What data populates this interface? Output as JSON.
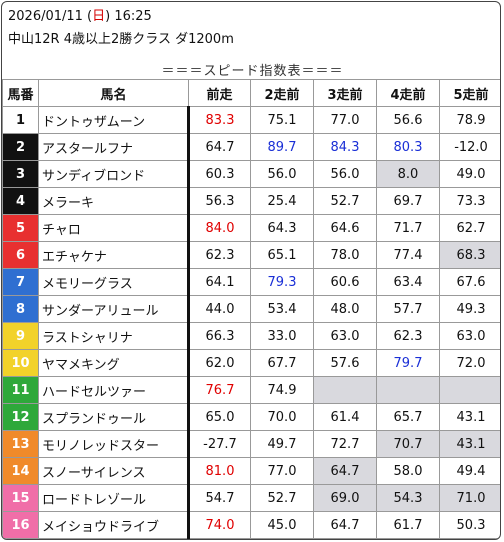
{
  "header": {
    "date_prefix": "2026/01/11 (",
    "day": "日",
    "date_suffix": ") 16:25",
    "race": "中山12R 4歳以上2勝クラス ダ1200m"
  },
  "table": {
    "title": "＝＝＝スピード指数表＝＝＝",
    "columns": [
      "馬番",
      "馬名",
      "前走",
      "2走前",
      "3走前",
      "4走前",
      "5走前"
    ],
    "rows": [
      {
        "num": "1",
        "wk": 1,
        "name": "ドントゥザムーン",
        "v": [
          {
            "t": "83.3",
            "c": "red"
          },
          {
            "t": "75.1"
          },
          {
            "t": "77.0"
          },
          {
            "t": "56.6"
          },
          {
            "t": "78.9"
          }
        ]
      },
      {
        "num": "2",
        "wk": 2,
        "name": "アスタールフナ",
        "v": [
          {
            "t": "64.7"
          },
          {
            "t": "89.7",
            "c": "blue",
            "b": true
          },
          {
            "t": "84.3",
            "c": "blue"
          },
          {
            "t": "80.3",
            "c": "blue"
          },
          {
            "t": "-12.0"
          }
        ]
      },
      {
        "num": "3",
        "wk": 2,
        "name": "サンディブロンド",
        "v": [
          {
            "t": "60.3"
          },
          {
            "t": "56.0"
          },
          {
            "t": "56.0"
          },
          {
            "t": "8.0",
            "g": true
          },
          {
            "t": "49.0"
          }
        ]
      },
      {
        "num": "4",
        "wk": 2,
        "name": "メラーキ",
        "v": [
          {
            "t": "56.3"
          },
          {
            "t": "25.4"
          },
          {
            "t": "52.7"
          },
          {
            "t": "69.7"
          },
          {
            "t": "73.3"
          }
        ]
      },
      {
        "num": "5",
        "wk": 3,
        "name": "チャロ",
        "v": [
          {
            "t": "84.0",
            "c": "red",
            "b": true
          },
          {
            "t": "64.3"
          },
          {
            "t": "64.6"
          },
          {
            "t": "71.7"
          },
          {
            "t": "62.7"
          }
        ]
      },
      {
        "num": "6",
        "wk": 3,
        "name": "エチャケナ",
        "v": [
          {
            "t": "62.3"
          },
          {
            "t": "65.1"
          },
          {
            "t": "78.0"
          },
          {
            "t": "77.4"
          },
          {
            "t": "68.3",
            "g": true
          }
        ]
      },
      {
        "num": "7",
        "wk": 4,
        "name": "メモリーグラス",
        "v": [
          {
            "t": "64.1"
          },
          {
            "t": "79.3",
            "c": "blue"
          },
          {
            "t": "60.6"
          },
          {
            "t": "63.4"
          },
          {
            "t": "67.6"
          }
        ]
      },
      {
        "num": "8",
        "wk": 4,
        "name": "サンダーアリュール",
        "v": [
          {
            "t": "44.0"
          },
          {
            "t": "53.4"
          },
          {
            "t": "48.0"
          },
          {
            "t": "57.7"
          },
          {
            "t": "49.3"
          }
        ]
      },
      {
        "num": "9",
        "wk": 5,
        "name": "ラストシャリナ",
        "v": [
          {
            "t": "66.3"
          },
          {
            "t": "33.0"
          },
          {
            "t": "63.0"
          },
          {
            "t": "62.3"
          },
          {
            "t": "63.0"
          }
        ]
      },
      {
        "num": "10",
        "wk": 5,
        "name": "ヤマメキング",
        "v": [
          {
            "t": "62.0"
          },
          {
            "t": "67.7"
          },
          {
            "t": "57.6"
          },
          {
            "t": "79.7",
            "c": "blue"
          },
          {
            "t": "72.0"
          }
        ]
      },
      {
        "num": "11",
        "wk": 6,
        "name": "ハードセルツァー",
        "v": [
          {
            "t": "76.7",
            "c": "red"
          },
          {
            "t": "74.9"
          },
          {
            "t": "",
            "g": true
          },
          {
            "t": "",
            "g": true
          },
          {
            "t": "",
            "g": true
          }
        ]
      },
      {
        "num": "12",
        "wk": 6,
        "name": "スプランドゥール",
        "v": [
          {
            "t": "65.0"
          },
          {
            "t": "70.0"
          },
          {
            "t": "61.4"
          },
          {
            "t": "65.7"
          },
          {
            "t": "43.1"
          }
        ]
      },
      {
        "num": "13",
        "wk": 7,
        "name": "モリノレッドスター",
        "v": [
          {
            "t": "-27.7"
          },
          {
            "t": "49.7"
          },
          {
            "t": "72.7"
          },
          {
            "t": "70.7",
            "g": true
          },
          {
            "t": "43.1",
            "g": true
          }
        ]
      },
      {
        "num": "14",
        "wk": 7,
        "name": "スノーサイレンス",
        "v": [
          {
            "t": "81.0",
            "c": "red"
          },
          {
            "t": "77.0"
          },
          {
            "t": "64.7",
            "g": true
          },
          {
            "t": "58.0"
          },
          {
            "t": "49.4"
          }
        ]
      },
      {
        "num": "15",
        "wk": 8,
        "name": "ロードトレゾール",
        "v": [
          {
            "t": "54.7"
          },
          {
            "t": "52.7"
          },
          {
            "t": "69.0",
            "g": true
          },
          {
            "t": "54.3",
            "g": true
          },
          {
            "t": "71.0",
            "g": true
          }
        ]
      },
      {
        "num": "16",
        "wk": 8,
        "name": "メイショウドライブ",
        "v": [
          {
            "t": "74.0",
            "c": "red"
          },
          {
            "t": "45.0"
          },
          {
            "t": "64.7"
          },
          {
            "t": "61.7"
          },
          {
            "t": "50.3"
          }
        ]
      }
    ]
  },
  "colors": {
    "waku": {
      "1": "#ffffff",
      "2": "#111111",
      "3": "#e83030",
      "4": "#2f6fd1",
      "5": "#f2d22a",
      "6": "#2ea83a",
      "7": "#f08a2a",
      "8": "#f06ea8"
    },
    "highlight_red": "#e00000",
    "highlight_blue": "#1a2fd6",
    "gray_cell": "#d9d9de"
  }
}
